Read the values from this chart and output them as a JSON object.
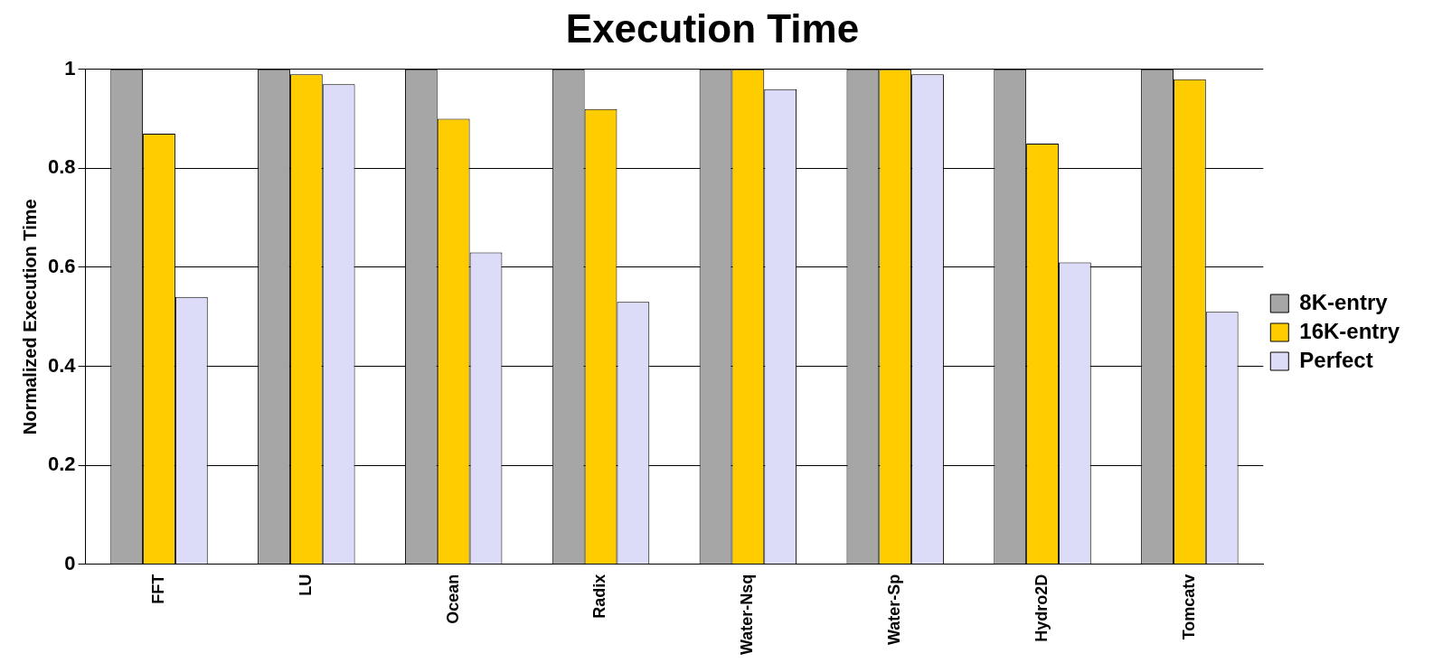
{
  "chart_data": {
    "type": "bar",
    "title": "Execution Time",
    "ylabel": "Normalized Execution Time",
    "categories": [
      "FFT",
      "LU",
      "Ocean",
      "Radix",
      "Water-Nsq",
      "Water-Sp",
      "Hydro2D",
      "Tomcatv"
    ],
    "series": [
      {
        "name": "8K-entry",
        "color": "#a6a6a6",
        "values": [
          1,
          1,
          1,
          1,
          1,
          1,
          1,
          1
        ]
      },
      {
        "name": "16K-entry",
        "color": "#ffcc00",
        "values": [
          0.87,
          0.99,
          0.9,
          0.92,
          1,
          1,
          0.85,
          0.98
        ]
      },
      {
        "name": "Perfect",
        "color": "#dcdcf8",
        "values": [
          0.54,
          0.97,
          0.63,
          0.53,
          0.96,
          0.99,
          0.61,
          0.51
        ]
      }
    ],
    "ylim": [
      0,
      1
    ],
    "yticks": [
      0,
      0.2,
      0.4,
      0.6,
      0.8,
      1
    ],
    "grid": "y",
    "legend": "right"
  }
}
